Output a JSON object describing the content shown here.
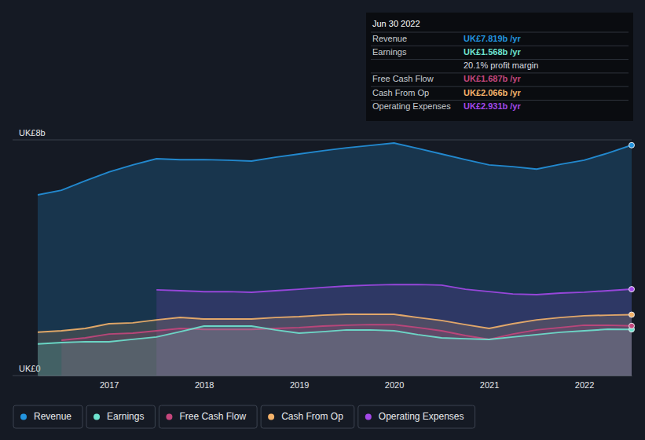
{
  "chart_data": {
    "type": "area",
    "x": [
      2016.25,
      2016.5,
      2016.75,
      2017,
      2017.25,
      2017.5,
      2017.75,
      2018,
      2018.25,
      2018.5,
      2018.75,
      2019,
      2019.25,
      2019.5,
      2019.75,
      2020,
      2020.25,
      2020.5,
      2020.75,
      2021,
      2021.25,
      2021.5,
      2021.75,
      2022,
      2022.25,
      2022.5
    ],
    "xlim": [
      2016.25,
      2022.5
    ],
    "xticks": [
      2017,
      2018,
      2019,
      2020,
      2021,
      2022
    ],
    "ylim": [
      0,
      8
    ],
    "yticks": [
      {
        "value": 0,
        "label": "UK£0"
      },
      {
        "value": 8,
        "label": "UK£8b"
      }
    ],
    "grid": true,
    "legend": "bottom",
    "series": [
      {
        "name": "Revenue",
        "color": "#2394df",
        "values": [
          6.13,
          6.29,
          6.61,
          6.91,
          7.15,
          7.36,
          7.33,
          7.33,
          7.31,
          7.28,
          7.41,
          7.52,
          7.63,
          7.73,
          7.81,
          7.89,
          7.71,
          7.52,
          7.33,
          7.15,
          7.09,
          7.01,
          7.17,
          7.31,
          7.55,
          7.819
        ]
      },
      {
        "name": "Earnings",
        "color": "#6ee3cf",
        "values": [
          1.07,
          1.12,
          1.15,
          1.15,
          1.23,
          1.31,
          1.49,
          1.68,
          1.68,
          1.68,
          1.55,
          1.44,
          1.49,
          1.55,
          1.55,
          1.52,
          1.39,
          1.28,
          1.25,
          1.23,
          1.31,
          1.39,
          1.47,
          1.52,
          1.57,
          1.568
        ]
      },
      {
        "name": "Free Cash Flow",
        "color": "#c4467c",
        "values": [
          null,
          1.2,
          1.28,
          1.41,
          1.44,
          1.52,
          1.6,
          1.57,
          1.57,
          1.57,
          1.6,
          1.63,
          1.68,
          1.71,
          1.73,
          1.73,
          1.63,
          1.52,
          1.36,
          1.23,
          1.41,
          1.55,
          1.63,
          1.71,
          1.71,
          1.687
        ]
      },
      {
        "name": "Cash From Op",
        "color": "#f4b26a",
        "values": [
          1.47,
          1.52,
          1.6,
          1.76,
          1.79,
          1.89,
          1.97,
          1.92,
          1.92,
          1.92,
          1.97,
          2.0,
          2.05,
          2.08,
          2.08,
          2.08,
          1.97,
          1.87,
          1.73,
          1.6,
          1.76,
          1.89,
          1.97,
          2.03,
          2.05,
          2.066
        ]
      },
      {
        "name": "Operating Expenses",
        "color": "#a348e8",
        "values": [
          null,
          null,
          null,
          null,
          null,
          2.91,
          2.88,
          2.85,
          2.85,
          2.83,
          2.88,
          2.93,
          2.99,
          3.04,
          3.07,
          3.09,
          3.09,
          3.07,
          2.93,
          2.85,
          2.77,
          2.75,
          2.8,
          2.83,
          2.88,
          2.931
        ]
      }
    ],
    "annotations": {
      "title": "Jun 30 2022",
      "rows": [
        {
          "label": "Revenue",
          "value": "UK£7.819b /yr"
        },
        {
          "label": "Earnings",
          "value": "UK£1.568b /yr"
        },
        {
          "value": "20.1% profit margin"
        },
        {
          "label": "Free Cash Flow",
          "value": "UK£1.687b /yr"
        },
        {
          "label": "Cash From Op",
          "value": "UK£2.066b /yr"
        },
        {
          "label": "Operating Expenses",
          "value": "UK£2.931b /yr"
        }
      ]
    }
  }
}
